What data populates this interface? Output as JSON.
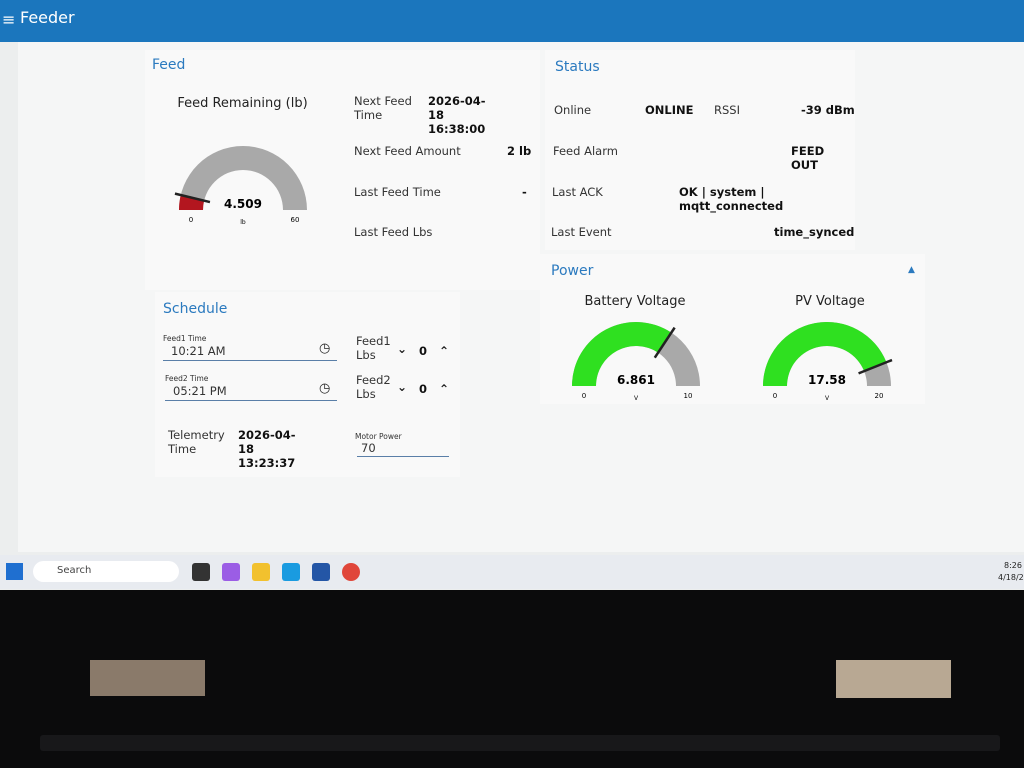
{
  "header": {
    "title": "Feeder"
  },
  "feed": {
    "title": "Feed",
    "gauge": {
      "title": "Feed Remaining (lb)",
      "value": 4.509,
      "min": 0,
      "max": 60,
      "unit": "lb",
      "color": "#b3161f",
      "track": "#a9a9a9"
    },
    "fields": [
      {
        "label": "Next Feed Time",
        "value": "2026-04-18 16:38:00"
      },
      {
        "label": "Next Feed Amount",
        "value": "2 lb"
      },
      {
        "label": "Last Feed Time",
        "value": "-"
      },
      {
        "label": "Last Feed Lbs"
      }
    ]
  },
  "status": {
    "title": "Status",
    "rows": [
      {
        "label": "Online",
        "value": "ONLINE",
        "label2": "RSSI",
        "value2": "-39 dBm"
      },
      {
        "label": "Feed Alarm",
        "value": "FEED OUT"
      },
      {
        "label": "Last ACK",
        "value": "OK | system | mqtt_connected"
      },
      {
        "label": "Last Event",
        "value": "time_synced"
      }
    ]
  },
  "power": {
    "title": "Power",
    "gauges": [
      {
        "title": "Battery Voltage",
        "value": 6.861,
        "min": 0,
        "max": 10,
        "unit": "V",
        "color": "#2fe020",
        "track": "#a9a9a9"
      },
      {
        "title": "PV Voltage",
        "value": 17.58,
        "min": 0,
        "max": 20,
        "unit": "V",
        "color": "#2fe020",
        "track": "#a9a9a9"
      }
    ]
  },
  "schedule": {
    "title": "Schedule",
    "feeds": [
      {
        "time_label": "Feed1 Time",
        "time": "10:21 AM",
        "lbs_label": "Feed1 Lbs",
        "lbs": 0
      },
      {
        "time_label": "Feed2 Time",
        "time": "05:21 PM",
        "lbs_label": "Feed2 Lbs",
        "lbs": 0
      }
    ],
    "telemetry": {
      "label": "Telemetry Time",
      "value": "2026-04-18 13:23:37"
    },
    "motor": {
      "label": "Motor Power",
      "value": 70
    }
  },
  "taskbar": {
    "search": "Search",
    "time": "8:26",
    "date": "4/18/2"
  }
}
